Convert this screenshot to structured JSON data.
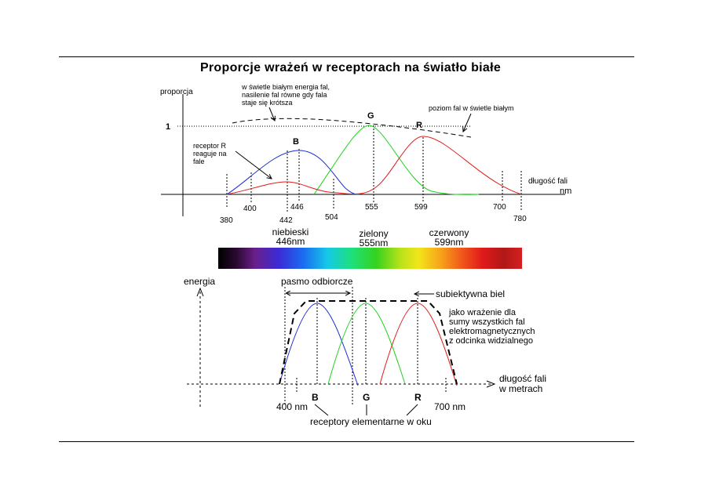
{
  "title": "Proporcje wrażeń w receptorach na światło białe",
  "top": {
    "y_label": "proporcja",
    "y_one": "1",
    "x_label": "długość fali",
    "x_unit": "nm",
    "note_line1": "w świetle białym energia fal,",
    "note_line2": "nasilenie fal równe gdy fala",
    "note_line3": "staje się krótsza",
    "level_note": "poziom fal w świetle białym",
    "receptor_r_line1": "receptor R",
    "receptor_r_line2": "reaguje na",
    "receptor_r_line3": "fale",
    "letter_b": "B",
    "letter_g": "G",
    "letter_r": "R",
    "ticks": [
      "380",
      "400",
      "442",
      "446",
      "504",
      "555",
      "599",
      "700",
      "780"
    ]
  },
  "band": {
    "blue_line1": "niebieski",
    "blue_line2": "446nm",
    "green_line1": "zielony",
    "green_line2": "555nm",
    "red_line1": "czerwony",
    "red_line2": "599nm"
  },
  "bottom": {
    "y_label": "energia",
    "pasmo": "pasmo odbiorcze",
    "subj": "subiektywna biel",
    "desc1": "jako wrażenie dla",
    "desc2": "sumy wszystkich fal",
    "desc3": "elektromagnetycznych",
    "desc4": "z odcinka widzialnego",
    "x_label1": "długość fali",
    "x_label2": "w metrach",
    "nm400": "400 nm",
    "nm700": "700 nm",
    "letter_b": "B",
    "letter_g": "G",
    "letter_r": "R",
    "receptors": "receptory elementarne w oku"
  },
  "colors": {
    "blue": "#1a2bd6",
    "green": "#1fd31f",
    "red": "#e11b1b"
  }
}
